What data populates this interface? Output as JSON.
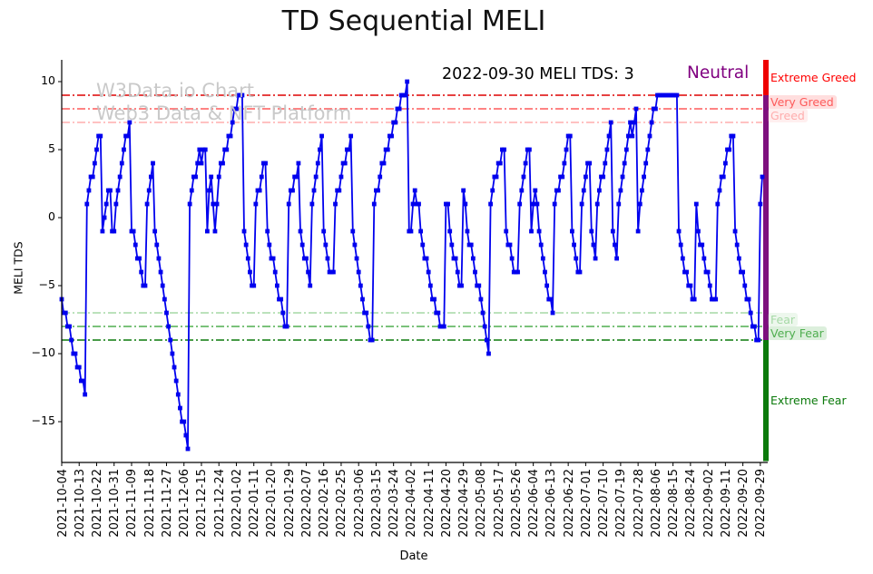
{
  "title": "TD Sequential MELI",
  "annotation": {
    "text": "2022-09-30 MELI TDS: 3",
    "status": "Neutral",
    "status_color": "#800080"
  },
  "watermark": {
    "line1": "W3Data.io Chart",
    "line2": "Web3 Data & NFT Platform"
  },
  "chart_data": {
    "type": "line",
    "title": "TD Sequential MELI",
    "xlabel": "Date",
    "ylabel": "MELI TDS",
    "start_date": "2021-10-04",
    "end_date": "2022-09-30",
    "tick_interval_days": 9,
    "line_color": "#0000ee",
    "marker": "square",
    "grid": false,
    "ylim": [
      -17.9,
      11.6
    ],
    "y_ticks": [
      10,
      5,
      0,
      -5,
      -10,
      -15
    ],
    "x_tick_labels": [
      "2021-10-04",
      "2021-10-13",
      "2021-10-22",
      "2021-10-31",
      "2021-11-09",
      "2021-11-18",
      "2021-11-27",
      "2021-12-06",
      "2021-12-15",
      "2021-12-24",
      "2022-01-02",
      "2022-01-11",
      "2022-01-20",
      "2022-01-29",
      "2022-02-07",
      "2022-02-16",
      "2022-02-25",
      "2022-03-06",
      "2022-03-15",
      "2022-03-24",
      "2022-04-02",
      "2022-04-11",
      "2022-04-20",
      "2022-04-29",
      "2022-05-08",
      "2022-05-17",
      "2022-05-26",
      "2022-06-04",
      "2022-06-13",
      "2022-06-22",
      "2022-07-01",
      "2022-07-10",
      "2022-07-19",
      "2022-07-28",
      "2022-08-06",
      "2022-08-15",
      "2022-08-24",
      "2022-09-02",
      "2022-09-11",
      "2022-09-20",
      "2022-09-29"
    ],
    "values": [
      -6,
      -7,
      -7,
      -8,
      -8,
      -9,
      -10,
      -10,
      -11,
      -11,
      -12,
      -12,
      -13,
      1,
      2,
      3,
      3,
      4,
      5,
      6,
      6,
      -1,
      0,
      1,
      2,
      2,
      -1,
      -1,
      1,
      2,
      3,
      4,
      5,
      6,
      6,
      7,
      -1,
      -1,
      -2,
      -3,
      -3,
      -4,
      -5,
      -5,
      1,
      2,
      3,
      4,
      -1,
      -2,
      -3,
      -4,
      -5,
      -6,
      -7,
      -8,
      -9,
      -10,
      -11,
      -12,
      -13,
      -14,
      -15,
      -15,
      -16,
      -17,
      1,
      2,
      3,
      3,
      4,
      5,
      4,
      5,
      5,
      -1,
      2,
      3,
      1,
      -1,
      1,
      3,
      4,
      4,
      5,
      5,
      6,
      6,
      7,
      8,
      8,
      9,
      9,
      9,
      -1,
      -2,
      -3,
      -4,
      -5,
      -5,
      1,
      2,
      2,
      3,
      4,
      4,
      -1,
      -2,
      -3,
      -3,
      -4,
      -5,
      -6,
      -6,
      -7,
      -8,
      -8,
      1,
      2,
      2,
      3,
      3,
      4,
      -1,
      -2,
      -3,
      -3,
      -4,
      -5,
      1,
      2,
      3,
      4,
      5,
      6,
      -1,
      -2,
      -3,
      -4,
      -4,
      -4,
      1,
      2,
      2,
      3,
      4,
      4,
      5,
      5,
      6,
      -1,
      -2,
      -3,
      -4,
      -5,
      -6,
      -7,
      -7,
      -8,
      -9,
      -9,
      1,
      2,
      2,
      3,
      4,
      4,
      5,
      5,
      6,
      6,
      7,
      7,
      8,
      8,
      9,
      9,
      9,
      10,
      -1,
      -1,
      1,
      2,
      1,
      1,
      -1,
      -2,
      -3,
      -3,
      -4,
      -5,
      -6,
      -6,
      -7,
      -7,
      -8,
      -8,
      -8,
      1,
      1,
      -1,
      -2,
      -3,
      -3,
      -4,
      -5,
      -5,
      2,
      1,
      -1,
      -2,
      -2,
      -3,
      -4,
      -5,
      -5,
      -6,
      -7,
      -8,
      -9,
      -10,
      1,
      2,
      3,
      3,
      4,
      4,
      5,
      5,
      -1,
      -2,
      -2,
      -3,
      -4,
      -4,
      -4,
      1,
      2,
      3,
      4,
      5,
      5,
      -1,
      1,
      2,
      1,
      -1,
      -2,
      -3,
      -4,
      -5,
      -6,
      -6,
      -7,
      1,
      2,
      2,
      3,
      3,
      4,
      5,
      6,
      6,
      -1,
      -2,
      -3,
      -4,
      -4,
      1,
      2,
      3,
      4,
      4,
      -1,
      -2,
      -3,
      1,
      2,
      3,
      3,
      4,
      5,
      6,
      7,
      -1,
      -2,
      -3,
      1,
      2,
      3,
      4,
      5,
      6,
      7,
      6,
      7,
      8,
      -1,
      1,
      2,
      3,
      4,
      5,
      6,
      7,
      8,
      8,
      9,
      9,
      9,
      9,
      9,
      9,
      9,
      9,
      9,
      9,
      9,
      -1,
      -2,
      -3,
      -4,
      -4,
      -5,
      -5,
      -6,
      -6,
      1,
      -1,
      -2,
      -2,
      -3,
      -4,
      -4,
      -5,
      -6,
      -6,
      -6,
      1,
      2,
      3,
      3,
      4,
      5,
      5,
      6,
      6,
      -1,
      -2,
      -3,
      -4,
      -4,
      -5,
      -6,
      -6,
      -7,
      -8,
      -8,
      -9,
      -9,
      1,
      3
    ],
    "thresholds": [
      {
        "value": 9,
        "label": "Extreme Greed",
        "color": "#dd0000",
        "label_color": "#ff0000",
        "label_bg": false,
        "band": [
          11.6,
          9
        ]
      },
      {
        "value": 8,
        "label": "Very Greed",
        "color": "#fd5a5a",
        "label_color": "#fd5a5a",
        "label_bg": true,
        "band": [
          9,
          8
        ]
      },
      {
        "value": 7,
        "label": "Greed",
        "color": "#ffadad",
        "label_color": "#ffadad",
        "label_bg": true,
        "band": [
          8,
          7
        ]
      },
      {
        "value": -7,
        "label": "Fear",
        "color": "#a6d9a6",
        "label_color": "#a6d9a6",
        "label_bg": true,
        "band": [
          -7,
          -8
        ]
      },
      {
        "value": -8,
        "label": "Very Fear",
        "color": "#4fae4f",
        "label_color": "#4fae4f",
        "label_bg": true,
        "band": [
          -8,
          -9
        ]
      },
      {
        "value": -9,
        "label": "Extreme Fear",
        "color": "#0b7a0b",
        "label_color": "#0b7a0b",
        "label_bg": false,
        "band": [
          -9,
          -17.9
        ]
      }
    ],
    "zones_bar": [
      {
        "from": 11.6,
        "to": 9,
        "color": "#ee0000"
      },
      {
        "from": 9,
        "to": -9,
        "color": "#7e107e"
      },
      {
        "from": -9,
        "to": -17.9,
        "color": "#0b7a0b"
      }
    ]
  }
}
